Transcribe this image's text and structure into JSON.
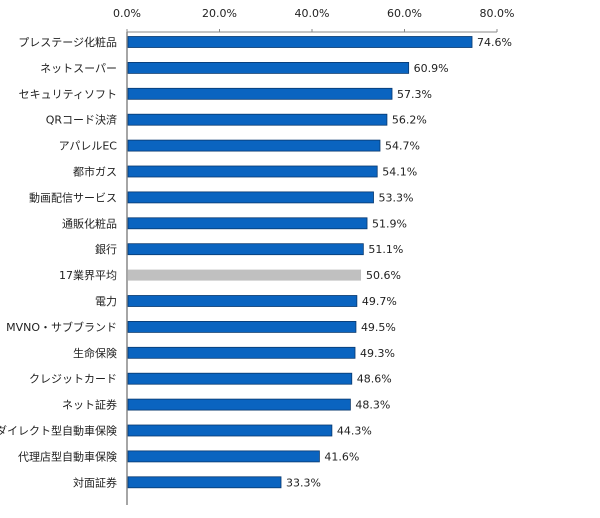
{
  "chart_data": {
    "type": "bar",
    "orientation": "horizontal",
    "title": "",
    "xlabel": "",
    "ylabel": "",
    "xlim": [
      0,
      80
    ],
    "x_ticks": [
      "0.0%",
      "20.0%",
      "40.0%",
      "60.0%",
      "80.0%"
    ],
    "x_axis_position": "top",
    "grid": false,
    "categories": [
      "プレステージ化粧品",
      "ネットスーパー",
      "セキュリティソフト",
      "QRコード決済",
      "アパレルEC",
      "都市ガス",
      "動画配信サービス",
      "通販化粧品",
      "銀行",
      "17業界平均",
      "電力",
      "MVNO・サブブランド",
      "生命保険",
      "クレジットカード",
      "ネット証券",
      "ダイレクト型自動車保険",
      "代理店型自動車保険",
      "対面証券"
    ],
    "values": [
      74.6,
      60.9,
      57.3,
      56.2,
      54.7,
      54.1,
      53.3,
      51.9,
      51.1,
      50.6,
      49.7,
      49.5,
      49.3,
      48.6,
      48.3,
      44.3,
      41.6,
      33.3
    ],
    "data_labels": [
      "74.6%",
      "60.9%",
      "57.3%",
      "56.2%",
      "54.7%",
      "54.1%",
      "53.3%",
      "51.9%",
      "51.1%",
      "50.6%",
      "49.7%",
      "49.5%",
      "49.3%",
      "48.6%",
      "48.3%",
      "44.3%",
      "41.6%",
      "33.3%"
    ],
    "highlight_category": "17業界平均",
    "colors": {
      "bar": "#0a64c0",
      "bar_edge": "#08386e",
      "highlight": "#c0c0c0",
      "axis": "#888888"
    }
  }
}
